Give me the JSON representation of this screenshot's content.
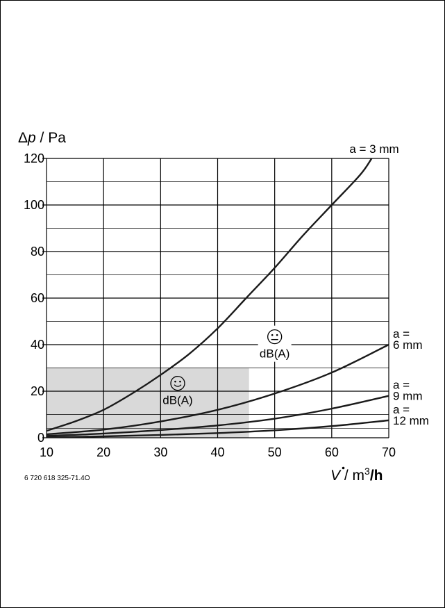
{
  "chart_data": {
    "type": "line",
    "title": "",
    "ylabel_symbol": "Δ",
    "ylabel_var": "p",
    "ylabel_unit": " / Pa",
    "xlabel_symbol": "V",
    "xlabel_unit_pre": " / m",
    "xlabel_unit_sup": "3",
    "xlabel_unit_post": "/h",
    "xlim": [
      10,
      70
    ],
    "ylim": [
      0,
      120
    ],
    "xticks": [
      "10",
      "20",
      "30",
      "40",
      "50",
      "60",
      "70"
    ],
    "yticks": [
      "0",
      "20",
      "40",
      "60",
      "80",
      "100",
      "120"
    ],
    "series": [
      {
        "name": "a = 3 mm",
        "label_lines": [
          "a = 3 mm"
        ],
        "x": [
          10,
          15,
          20,
          25,
          30,
          35,
          40,
          45,
          50,
          55,
          60,
          65,
          67
        ],
        "y": [
          3,
          7,
          12,
          19,
          27,
          36,
          47,
          60,
          73,
          87,
          100,
          113,
          120
        ]
      },
      {
        "name": "a = 6 mm",
        "label_lines": [
          "a =",
          "6 mm"
        ],
        "x": [
          10,
          20,
          30,
          40,
          50,
          60,
          70
        ],
        "y": [
          1.5,
          3.5,
          7,
          12,
          19,
          28,
          40
        ]
      },
      {
        "name": "a = 9 mm",
        "label_lines": [
          "a =",
          "9 mm"
        ],
        "x": [
          10,
          20,
          30,
          40,
          50,
          60,
          70
        ],
        "y": [
          0.8,
          1.8,
          3.3,
          5.3,
          8.2,
          12.5,
          18
        ]
      },
      {
        "name": "a = 12 mm",
        "label_lines": [
          "a =",
          "12 mm"
        ],
        "x": [
          10,
          20,
          30,
          40,
          50,
          60,
          70
        ],
        "y": [
          0.2,
          0.6,
          1.2,
          2,
          3.2,
          5,
          7.5
        ]
      }
    ],
    "annotations": [
      {
        "text": "dB(A)",
        "face": "smiling",
        "x": 33,
        "y": 21
      },
      {
        "text": "dB(A)",
        "face": "neutral",
        "x": 50,
        "y": 41
      }
    ],
    "shaded_region": {
      "x": [
        10,
        45.5
      ],
      "y": [
        0,
        30
      ],
      "color": "#d9d9d9"
    },
    "line_color": "#1a1a1a",
    "grid": true,
    "footnote": "6 720 618 325-71.4O"
  }
}
